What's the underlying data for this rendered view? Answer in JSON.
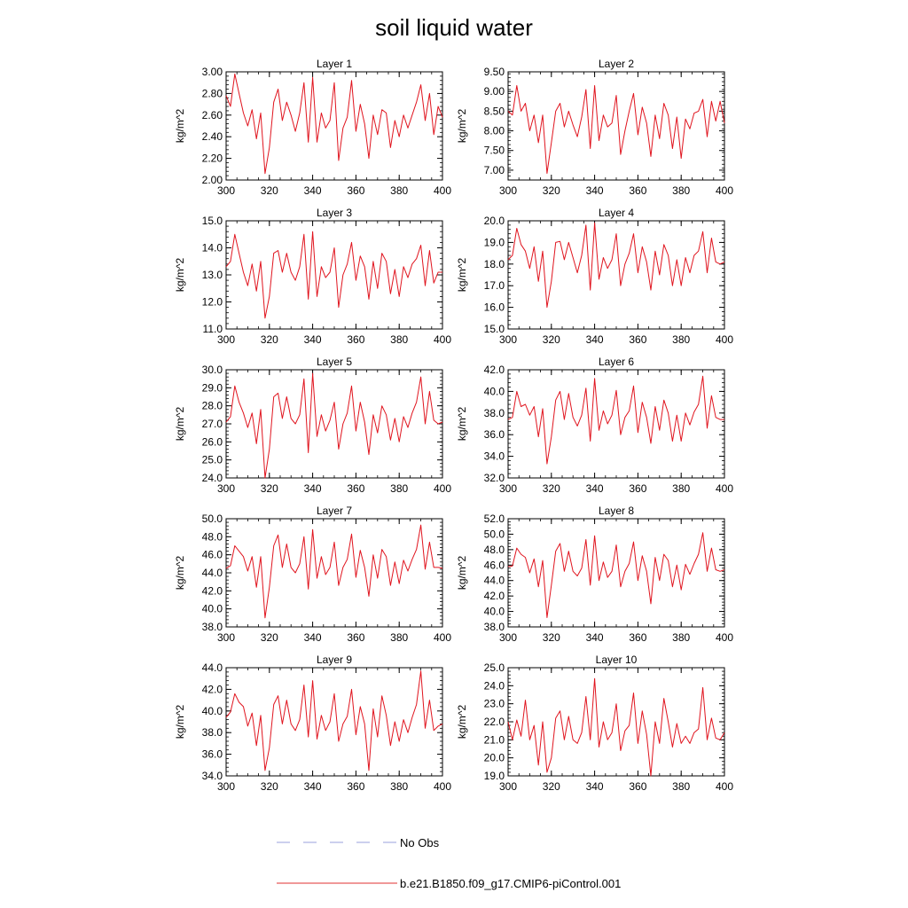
{
  "chart_data": {
    "type": "line",
    "title": "soil liquid water",
    "x": [
      300,
      302,
      304,
      306,
      308,
      310,
      312,
      314,
      316,
      318,
      320,
      322,
      324,
      326,
      328,
      330,
      332,
      334,
      336,
      338,
      340,
      342,
      344,
      346,
      348,
      350,
      352,
      354,
      356,
      358,
      360,
      362,
      364,
      366,
      368,
      370,
      372,
      374,
      376,
      378,
      380,
      382,
      384,
      386,
      388,
      390,
      392,
      394,
      396,
      398,
      400
    ],
    "xlim": [
      300,
      400
    ],
    "xticks": [
      "300",
      "320",
      "340",
      "360",
      "380",
      "400"
    ],
    "ylabel": "kg/m^2",
    "panels": [
      {
        "name": "Layer 1",
        "ylim": [
          2.0,
          3.0
        ],
        "yticks": [
          "2.00",
          "2.20",
          "2.40",
          "2.60",
          "2.80",
          "3.00"
        ],
        "values": [
          2.78,
          2.68,
          2.98,
          2.8,
          2.62,
          2.5,
          2.65,
          2.38,
          2.62,
          2.06,
          2.3,
          2.72,
          2.84,
          2.55,
          2.72,
          2.6,
          2.45,
          2.62,
          2.9,
          2.35,
          2.95,
          2.35,
          2.62,
          2.48,
          2.55,
          2.9,
          2.18,
          2.48,
          2.58,
          2.92,
          2.45,
          2.7,
          2.52,
          2.2,
          2.6,
          2.42,
          2.65,
          2.62,
          2.3,
          2.55,
          2.4,
          2.6,
          2.48,
          2.6,
          2.72,
          2.88,
          2.55,
          2.8,
          2.42,
          2.68,
          2.58
        ]
      },
      {
        "name": "Layer 2",
        "ylim": [
          6.75,
          9.5
        ],
        "yticks": [
          "7.00",
          "7.50",
          "8.00",
          "8.50",
          "9.00",
          "9.50"
        ],
        "values": [
          8.5,
          8.4,
          9.15,
          8.5,
          8.7,
          8.0,
          8.4,
          7.7,
          8.4,
          6.92,
          7.7,
          8.5,
          8.7,
          8.1,
          8.5,
          8.15,
          7.85,
          8.35,
          9.05,
          7.55,
          9.15,
          7.75,
          8.4,
          8.1,
          8.2,
          8.9,
          7.4,
          8.0,
          8.5,
          8.95,
          7.9,
          8.6,
          8.2,
          7.35,
          8.4,
          7.8,
          8.7,
          8.4,
          7.55,
          8.35,
          7.3,
          8.3,
          8.05,
          8.45,
          8.5,
          8.8,
          7.85,
          8.75,
          8.25,
          8.75,
          8.2
        ]
      },
      {
        "name": "Layer 3",
        "ylim": [
          11.0,
          15.0
        ],
        "yticks": [
          "11.0",
          "12.0",
          "13.0",
          "14.0",
          "15.0"
        ],
        "values": [
          13.3,
          13.5,
          14.5,
          13.8,
          13.1,
          12.6,
          13.4,
          12.4,
          13.5,
          11.4,
          12.2,
          13.8,
          13.9,
          13.1,
          13.8,
          13.1,
          12.8,
          13.3,
          14.5,
          12.1,
          14.6,
          12.2,
          13.3,
          12.9,
          13.1,
          14.0,
          11.8,
          13.0,
          13.4,
          14.2,
          12.8,
          13.7,
          13.3,
          12.1,
          13.5,
          12.5,
          13.8,
          13.5,
          12.3,
          13.2,
          12.2,
          13.3,
          12.9,
          13.4,
          13.6,
          14.1,
          12.6,
          13.9,
          12.7,
          13.1,
          13.1
        ]
      },
      {
        "name": "Layer 4",
        "ylim": [
          15.0,
          20.0
        ],
        "yticks": [
          "15.0",
          "16.0",
          "17.0",
          "18.0",
          "19.0",
          "20.0"
        ],
        "values": [
          18.2,
          18.4,
          19.65,
          18.9,
          18.6,
          17.8,
          18.8,
          17.2,
          18.6,
          16.0,
          17.2,
          19.0,
          19.05,
          18.2,
          19.0,
          18.3,
          17.6,
          18.4,
          19.8,
          16.8,
          19.9,
          17.3,
          18.3,
          17.8,
          18.2,
          19.4,
          17.0,
          18.0,
          18.5,
          19.4,
          17.6,
          18.8,
          18.1,
          16.8,
          18.6,
          17.5,
          18.9,
          18.4,
          17.0,
          18.2,
          17.0,
          18.3,
          17.6,
          18.4,
          18.6,
          19.5,
          17.6,
          19.2,
          18.1,
          18.0,
          18.1
        ]
      },
      {
        "name": "Layer 5",
        "ylim": [
          24.0,
          30.0
        ],
        "yticks": [
          "24.0",
          "25.0",
          "26.0",
          "27.0",
          "28.0",
          "29.0",
          "30.0"
        ],
        "values": [
          27.1,
          27.4,
          29.1,
          28.2,
          27.6,
          26.8,
          27.6,
          25.9,
          27.8,
          24.0,
          25.6,
          28.5,
          28.7,
          27.3,
          28.5,
          27.3,
          27.0,
          27.5,
          29.5,
          25.4,
          29.8,
          26.3,
          27.5,
          26.6,
          27.2,
          28.2,
          25.6,
          27.0,
          27.6,
          29.1,
          26.6,
          28.2,
          27.1,
          25.3,
          27.5,
          26.5,
          28.0,
          27.5,
          26.1,
          27.3,
          26.0,
          27.4,
          26.8,
          27.6,
          28.2,
          29.6,
          27.0,
          28.8,
          27.2,
          27.0,
          27.1
        ]
      },
      {
        "name": "Layer 6",
        "ylim": [
          32.0,
          42.0
        ],
        "yticks": [
          "32.0",
          "34.0",
          "36.0",
          "38.0",
          "40.0",
          "42.0"
        ],
        "values": [
          37.4,
          37.6,
          40.0,
          38.6,
          38.8,
          37.8,
          38.6,
          35.8,
          38.4,
          33.3,
          35.8,
          39.2,
          40.0,
          37.4,
          39.8,
          37.6,
          36.8,
          37.8,
          40.3,
          35.4,
          41.2,
          36.4,
          38.2,
          37.0,
          37.8,
          40.1,
          36.0,
          37.6,
          38.2,
          40.5,
          36.2,
          39.0,
          37.6,
          35.2,
          38.6,
          36.4,
          39.2,
          38.0,
          35.4,
          37.8,
          35.4,
          38.0,
          36.9,
          38.1,
          38.8,
          41.4,
          36.6,
          39.6,
          37.6,
          37.4,
          37.4
        ]
      },
      {
        "name": "Layer 7",
        "ylim": [
          38.0,
          50.0
        ],
        "yticks": [
          "38.0",
          "40.0",
          "42.0",
          "44.0",
          "46.0",
          "48.0",
          "50.0"
        ],
        "values": [
          44.5,
          44.8,
          47.0,
          46.4,
          45.8,
          44.2,
          45.8,
          42.4,
          45.8,
          39.0,
          42.4,
          47.0,
          48.2,
          44.6,
          47.2,
          44.6,
          44.0,
          45.0,
          48.0,
          42.2,
          48.8,
          43.4,
          45.8,
          43.8,
          44.6,
          47.4,
          42.6,
          44.6,
          45.5,
          48.3,
          43.5,
          46.5,
          44.6,
          41.4,
          46.0,
          43.4,
          46.6,
          45.8,
          42.6,
          45.2,
          42.8,
          45.4,
          44.2,
          45.5,
          46.6,
          49.3,
          44.4,
          47.4,
          44.6,
          44.6,
          44.5
        ]
      },
      {
        "name": "Layer 8",
        "ylim": [
          38.0,
          52.0
        ],
        "yticks": [
          "38.0",
          "40.0",
          "42.0",
          "44.0",
          "46.0",
          "48.0",
          "50.0",
          "52.0"
        ],
        "values": [
          45.8,
          45.9,
          48.2,
          47.4,
          47.0,
          45.0,
          46.8,
          43.2,
          46.6,
          39.2,
          43.4,
          47.8,
          48.8,
          45.2,
          47.8,
          45.2,
          44.6,
          45.6,
          49.3,
          43.4,
          49.8,
          44.0,
          46.4,
          44.4,
          45.2,
          48.6,
          43.2,
          45.2,
          46.2,
          49.0,
          44.0,
          47.2,
          45.2,
          41.0,
          47.0,
          44.0,
          47.4,
          46.6,
          43.2,
          46.0,
          42.8,
          46.1,
          44.8,
          46.2,
          47.4,
          50.2,
          45.2,
          48.2,
          45.4,
          45.2,
          45.4
        ]
      },
      {
        "name": "Layer 9",
        "ylim": [
          34.0,
          44.0
        ],
        "yticks": [
          "34.0",
          "36.0",
          "38.0",
          "40.0",
          "42.0",
          "44.0"
        ],
        "values": [
          39.4,
          39.9,
          41.6,
          40.8,
          40.4,
          38.6,
          39.8,
          36.8,
          39.6,
          34.5,
          36.6,
          40.6,
          41.4,
          38.8,
          41.0,
          38.8,
          38.2,
          39.2,
          42.4,
          37.6,
          42.8,
          37.4,
          39.6,
          38.2,
          39.0,
          41.6,
          37.2,
          38.8,
          39.5,
          42.0,
          37.8,
          40.4,
          38.8,
          34.5,
          40.2,
          37.6,
          41.4,
          39.6,
          36.8,
          39.0,
          37.2,
          39.2,
          38.0,
          39.4,
          40.6,
          43.7,
          38.4,
          41.0,
          38.2,
          38.6,
          38.8
        ]
      },
      {
        "name": "Layer 10",
        "ylim": [
          19.0,
          25.0
        ],
        "yticks": [
          "19.0",
          "20.0",
          "21.0",
          "22.0",
          "23.0",
          "24.0",
          "25.0"
        ],
        "values": [
          22.0,
          21.0,
          22.1,
          21.2,
          23.2,
          21.0,
          21.8,
          19.6,
          22.0,
          19.2,
          20.0,
          22.2,
          22.6,
          21.0,
          22.3,
          21.0,
          20.8,
          21.4,
          23.4,
          21.0,
          24.4,
          20.6,
          22.0,
          21.0,
          21.4,
          23.0,
          20.4,
          21.5,
          21.8,
          23.6,
          20.8,
          22.6,
          21.3,
          19.0,
          22.0,
          20.8,
          23.3,
          22.0,
          20.6,
          21.9,
          20.8,
          21.2,
          20.8,
          21.4,
          21.6,
          23.9,
          21.0,
          22.2,
          21.1,
          21.0,
          21.4
        ]
      }
    ],
    "legend": [
      {
        "label": "No Obs",
        "color": "#9aa0dd",
        "dash": "dashed"
      },
      {
        "label": "b.e21.B1850.f09_g17.CMIP6-piControl.001",
        "color": "#e03030",
        "dash": "solid"
      }
    ],
    "line_color": "#e0141e",
    "grid": false,
    "legend_position": "bottom"
  }
}
